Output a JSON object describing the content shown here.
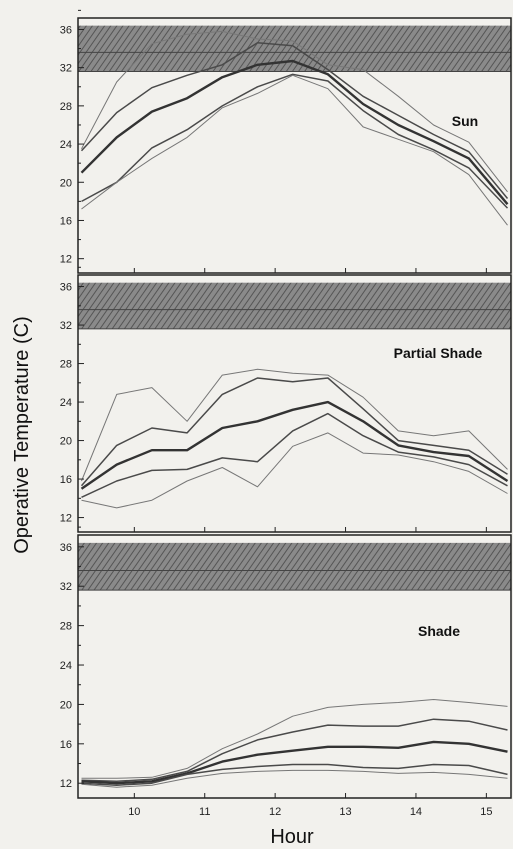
{
  "chart_data": {
    "type": "line",
    "ylabel": "Operative Temperature (C)",
    "xlabel": "Hour",
    "x_ticks": [
      10,
      11,
      12,
      13,
      14,
      15
    ],
    "xlim": [
      9.2,
      15.35
    ],
    "y_ticks": [
      12,
      16,
      20,
      24,
      28,
      32,
      36
    ],
    "comfort_band": {
      "outer": [
        31.6,
        36.4
      ],
      "inner_line": 33.6
    },
    "colors": {
      "band": "#7a7a7a",
      "mean": "#333333",
      "inner": "#4a4a4a",
      "outer": "#777777"
    },
    "panels": [
      {
        "label": "Sun",
        "ylim": [
          10.5,
          37.2
        ],
        "x": [
          9.25,
          9.75,
          10.25,
          10.75,
          11.25,
          11.75,
          12.25,
          12.75,
          13.25,
          13.75,
          14.25,
          14.75,
          15.3
        ],
        "series": [
          {
            "role": "outer",
            "values": [
              23.5,
              30.5,
              34.5,
              35.5,
              35.8,
              35.0,
              34.8,
              32.3,
              31.8,
              29.0,
              26.0,
              24.2,
              19.0
            ]
          },
          {
            "role": "inner",
            "values": [
              23.3,
              27.3,
              29.9,
              31.2,
              32.3,
              34.6,
              34.3,
              31.8,
              29.0,
              27.0,
              25.0,
              23.2,
              18.3
            ]
          },
          {
            "role": "mean",
            "values": [
              21.0,
              24.7,
              27.4,
              28.8,
              31.0,
              32.3,
              32.7,
              31.3,
              28.2,
              26.0,
              24.3,
              22.5,
              17.7
            ]
          },
          {
            "role": "inner",
            "values": [
              18.0,
              20.0,
              23.6,
              25.5,
              28.0,
              30.0,
              31.3,
              30.6,
              27.5,
              25.0,
              23.4,
              21.5,
              17.3
            ]
          },
          {
            "role": "outer",
            "values": [
              17.2,
              20.0,
              22.5,
              24.7,
              27.8,
              29.3,
              31.2,
              29.8,
              25.8,
              24.5,
              23.2,
              20.8,
              15.5
            ]
          }
        ]
      },
      {
        "label": "Partial Shade",
        "ylim": [
          10.5,
          37.2
        ],
        "x": [
          9.25,
          9.75,
          10.25,
          10.75,
          11.25,
          11.75,
          12.25,
          12.75,
          13.25,
          13.75,
          14.25,
          14.75,
          15.3
        ],
        "series": [
          {
            "role": "outer",
            "values": [
              15.8,
              24.8,
              25.5,
              22.0,
              26.8,
              27.4,
              27.0,
              26.8,
              24.5,
              21.0,
              20.5,
              21.0,
              17.0
            ]
          },
          {
            "role": "inner",
            "values": [
              15.3,
              19.5,
              21.3,
              20.8,
              24.8,
              26.5,
              26.1,
              26.5,
              23.3,
              20.0,
              19.5,
              19.0,
              16.5
            ]
          },
          {
            "role": "mean",
            "values": [
              15.0,
              17.5,
              19.0,
              19.0,
              21.3,
              22.0,
              23.2,
              24.0,
              22.0,
              19.5,
              18.8,
              18.4,
              15.8
            ]
          },
          {
            "role": "inner",
            "values": [
              14.1,
              15.8,
              16.9,
              17.0,
              18.2,
              17.8,
              21.0,
              22.8,
              20.5,
              18.8,
              18.3,
              17.5,
              15.3
            ]
          },
          {
            "role": "outer",
            "values": [
              13.8,
              13.0,
              13.8,
              15.8,
              17.2,
              15.2,
              19.4,
              20.8,
              18.7,
              18.5,
              17.8,
              16.8,
              14.5
            ]
          }
        ]
      },
      {
        "label": "Shade",
        "ylim": [
          10.5,
          37.2
        ],
        "x": [
          9.25,
          9.75,
          10.25,
          10.75,
          11.25,
          11.75,
          12.25,
          12.75,
          13.25,
          13.75,
          14.25,
          14.75,
          15.3
        ],
        "series": [
          {
            "role": "outer",
            "values": [
              12.5,
              12.5,
              12.6,
              13.5,
              15.5,
              17.0,
              18.8,
              19.7,
              20.0,
              20.2,
              20.5,
              20.2,
              19.8
            ]
          },
          {
            "role": "inner",
            "values": [
              12.3,
              12.2,
              12.4,
              13.2,
              15.0,
              16.4,
              17.2,
              17.9,
              17.8,
              17.8,
              18.5,
              18.3,
              17.4
            ]
          },
          {
            "role": "mean",
            "values": [
              12.2,
              12.0,
              12.2,
              13.0,
              14.2,
              14.9,
              15.3,
              15.7,
              15.7,
              15.6,
              16.2,
              16.0,
              15.2
            ]
          },
          {
            "role": "inner",
            "values": [
              12.0,
              11.8,
              12.0,
              12.9,
              13.4,
              13.7,
              13.9,
              13.9,
              13.6,
              13.5,
              13.9,
              13.8,
              12.9
            ]
          },
          {
            "role": "outer",
            "values": [
              11.9,
              11.6,
              11.8,
              12.5,
              13.0,
              13.2,
              13.3,
              13.3,
              13.2,
              13.0,
              13.1,
              12.9,
              12.5
            ]
          }
        ]
      }
    ]
  }
}
